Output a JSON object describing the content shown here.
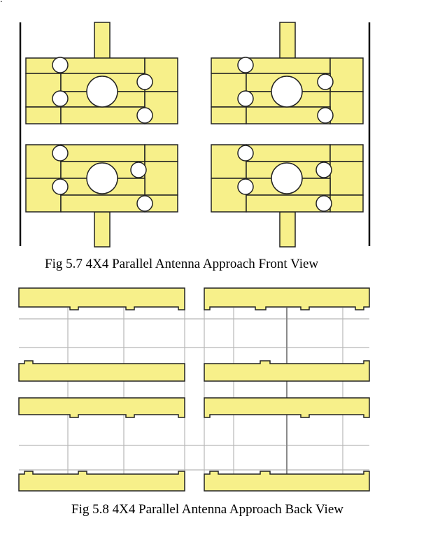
{
  "page": {
    "stray_mark": ".",
    "figure_front": {
      "caption": "Fig 5.7 4X4 Parallel Antenna Approach Front View"
    },
    "figure_back": {
      "caption": "Fig 5.8 4X4 Parallel Antenna Approach Back View"
    }
  },
  "colors": {
    "patch_fill": "#f7f08a",
    "outline": "#222222",
    "board_edge": "#111111",
    "grid_line": "#b8b8b8",
    "grid_line_dark": "#8a8a8a",
    "background": "#ffffff"
  }
}
